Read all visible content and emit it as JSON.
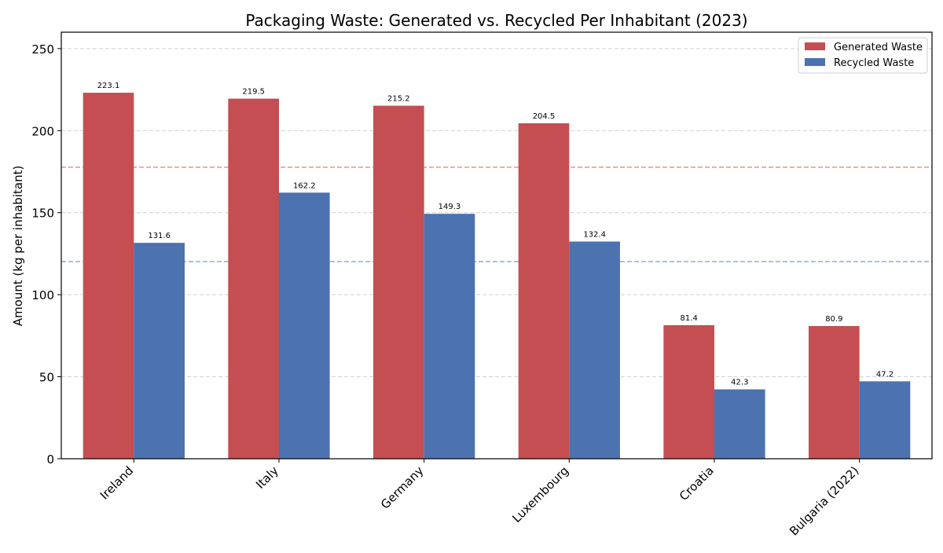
{
  "chart_data": {
    "type": "bar",
    "title": "Packaging Waste: Generated vs. Recycled Per Inhabitant (2023)",
    "xlabel": "",
    "ylabel": "Amount (kg per inhabitant)",
    "ylim": [
      0,
      260
    ],
    "yticks": [
      0,
      50,
      100,
      150,
      200,
      250
    ],
    "grid": "y-dashed",
    "legend_position": "top-right",
    "categories": [
      "Ireland",
      "Italy",
      "Germany",
      "Luxembourg",
      "Croatia",
      "Bulgaria (2022)"
    ],
    "series": [
      {
        "name": "Generated Waste",
        "color": "#c44e52",
        "values": [
          223.1,
          219.5,
          215.2,
          204.5,
          81.4,
          80.9
        ]
      },
      {
        "name": "Recycled Waste",
        "color": "#4c72b0",
        "values": [
          131.6,
          162.2,
          149.3,
          132.4,
          42.3,
          47.2
        ]
      }
    ],
    "reference_lines": [
      {
        "series": "Generated Waste",
        "value": 177.7,
        "color": "#e07b80",
        "style": "dashed"
      },
      {
        "series": "Recycled Waste",
        "value": 120.2,
        "color": "#7b9bd0",
        "style": "dashed"
      }
    ]
  }
}
